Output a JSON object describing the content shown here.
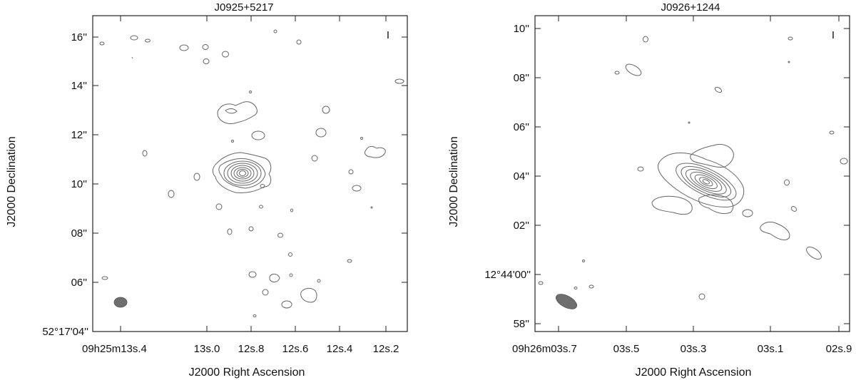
{
  "panels": [
    {
      "title": "J0925+5217",
      "xlabel": "J2000 Right Ascension",
      "ylabel": "J2000 Declination",
      "y_ticks": [
        "16''",
        "14''",
        "12''",
        "10''",
        "08''",
        "06''",
        "52°17'04''"
      ],
      "x_ticks": [
        "09h25m13s.4",
        "13s.0",
        "12s.8",
        "12s.6",
        "12s.4",
        "12s.2"
      ],
      "marker": "I"
    },
    {
      "title": "J0926+1244",
      "xlabel": "J2000 Right Ascension",
      "ylabel": "J2000 Declination",
      "y_ticks": [
        "10''",
        "08''",
        "06''",
        "04''",
        "02''",
        "12°44'00''",
        "58''"
      ],
      "x_ticks": [
        "09h26m03s.7",
        "03s.5",
        "03s.3",
        "03s.1",
        "02s.9"
      ],
      "marker": "I"
    }
  ],
  "colors": {
    "contour": "#666666",
    "beam": "#6e6e6e",
    "frame": "#222222"
  }
}
